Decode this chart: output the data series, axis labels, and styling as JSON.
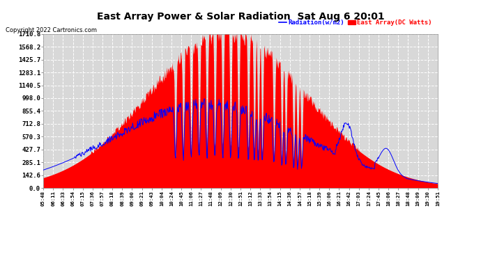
{
  "title": "East Array Power & Solar Radiation  Sat Aug 6 20:01",
  "copyright": "Copyright 2022 Cartronics.com",
  "legend_radiation": "Radiation(w/m2)",
  "legend_east": "East Array(DC Watts)",
  "y_max": 1710.8,
  "y_ticks": [
    0.0,
    142.6,
    285.1,
    427.7,
    570.3,
    712.8,
    855.4,
    998.0,
    1140.5,
    1283.1,
    1425.7,
    1568.2,
    1710.8
  ],
  "background_color": "#ffffff",
  "plot_bg_color": "#d8d8d8",
  "grid_color": "#ffffff",
  "red_color": "#ff0000",
  "blue_color": "#0000ff",
  "title_fontsize": 10,
  "copyright_fontsize": 6,
  "x_labels": [
    "05:48",
    "06:11",
    "06:33",
    "06:54",
    "07:15",
    "07:36",
    "07:57",
    "08:18",
    "08:39",
    "09:00",
    "09:21",
    "09:43",
    "10:04",
    "10:24",
    "10:45",
    "11:06",
    "11:27",
    "11:48",
    "12:09",
    "12:30",
    "12:51",
    "13:12",
    "13:33",
    "13:54",
    "14:15",
    "14:36",
    "14:57",
    "15:18",
    "15:39",
    "16:00",
    "16:21",
    "16:42",
    "17:03",
    "17:24",
    "17:45",
    "18:06",
    "18:27",
    "18:48",
    "19:09",
    "19:30",
    "19:51"
  ]
}
